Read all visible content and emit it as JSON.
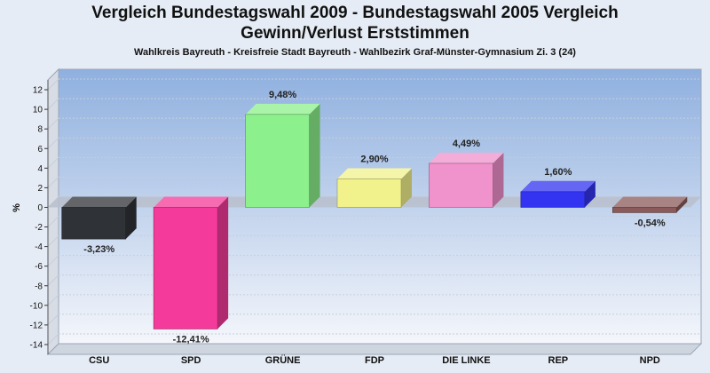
{
  "chart_data": {
    "type": "bar",
    "title_line1": "Vergleich Bundestagswahl 2009 - Bundestagswahl 2005 Vergleich",
    "title_line2": "Gewinn/Verlust Erststimmen",
    "subtitle": "Wahlkreis Bayreuth - Kreisfreie Stadt Bayreuth - Wahlbezirk Graf-Münster-Gymnasium Zi. 3 (24)",
    "ylabel": "%",
    "xlabel": "",
    "ylim": [
      -15,
      13
    ],
    "yticks": [
      12,
      10,
      8,
      6,
      4,
      2,
      0,
      -2,
      -4,
      -6,
      -8,
      -10,
      -12,
      -14
    ],
    "ytick_labels": [
      "12",
      "10",
      "8",
      "6",
      "4",
      "2",
      "0",
      "-2",
      "-4",
      "-6",
      "-8",
      "-10",
      "-12",
      "-14"
    ],
    "grid": true,
    "categories": [
      "CSU",
      "SPD",
      "GRÜNE",
      "FDP",
      "DIE LINKE",
      "REP",
      "NPD"
    ],
    "values": [
      -3.23,
      -12.41,
      9.48,
      2.9,
      4.49,
      1.6,
      -0.54
    ],
    "value_labels": [
      "-3,23%",
      "-12,41%",
      "9,48%",
      "2,90%",
      "4,49%",
      "1,60%",
      "-0,54%"
    ],
    "colors": [
      "#2f3236",
      "#f43a9a",
      "#8cf08c",
      "#f2f28c",
      "#f092cc",
      "#3333f2",
      "#8a5a5a"
    ]
  }
}
